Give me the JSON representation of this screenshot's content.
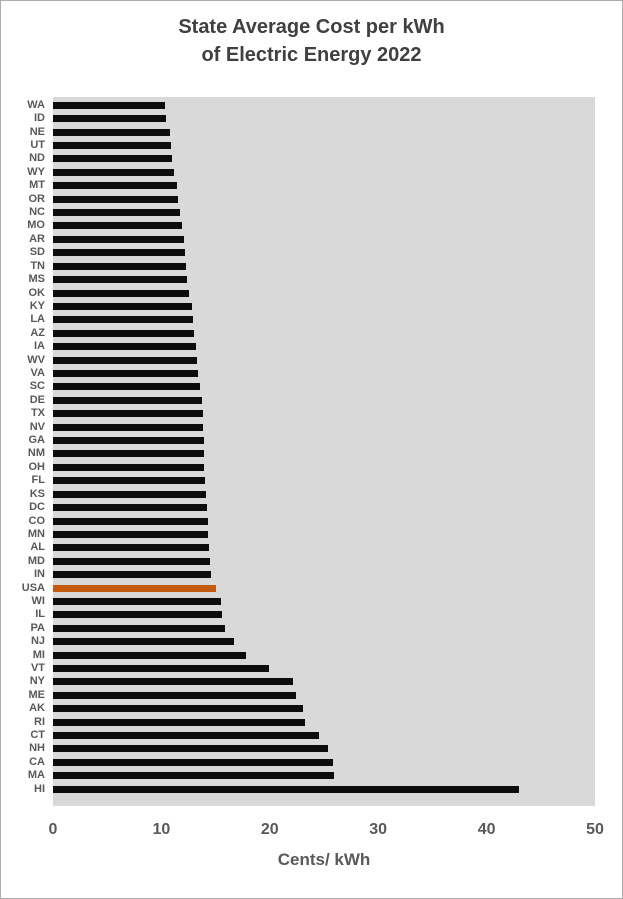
{
  "title": {
    "line1": "State Average Cost per kWh",
    "line2": "of Electric Energy 2022"
  },
  "chart_data": {
    "type": "bar",
    "orientation": "horizontal",
    "title": "State Average Cost per kWh of Electric Energy 2022",
    "xlabel": "Cents/ kWh",
    "ylabel": "",
    "xlim": [
      0,
      50
    ],
    "x_ticks": [
      0,
      10,
      20,
      30,
      40,
      50
    ],
    "grid": false,
    "legend": false,
    "highlight_category": "USA",
    "categories": [
      "WA",
      "ID",
      "NE",
      "UT",
      "ND",
      "WY",
      "MT",
      "OR",
      "NC",
      "MO",
      "AR",
      "SD",
      "TN",
      "MS",
      "OK",
      "KY",
      "LA",
      "AZ",
      "IA",
      "WV",
      "VA",
      "SC",
      "DE",
      "TX",
      "NV",
      "GA",
      "NM",
      "OH",
      "FL",
      "KS",
      "DC",
      "CO",
      "MN",
      "AL",
      "MD",
      "IN",
      "USA",
      "WI",
      "IL",
      "PA",
      "NJ",
      "MI",
      "VT",
      "NY",
      "ME",
      "AK",
      "RI",
      "CT",
      "NH",
      "CA",
      "MA",
      "HI"
    ],
    "values": [
      10.3,
      10.4,
      10.8,
      10.9,
      11.0,
      11.2,
      11.4,
      11.5,
      11.7,
      11.9,
      12.1,
      12.2,
      12.3,
      12.4,
      12.5,
      12.8,
      12.9,
      13.0,
      13.2,
      13.3,
      13.4,
      13.6,
      13.7,
      13.8,
      13.8,
      13.9,
      13.9,
      13.9,
      14.0,
      14.1,
      14.2,
      14.3,
      14.3,
      14.4,
      14.5,
      14.6,
      15.0,
      15.5,
      15.6,
      15.9,
      16.7,
      17.8,
      19.9,
      22.1,
      22.4,
      23.1,
      23.2,
      24.5,
      25.4,
      25.8,
      25.9,
      43.0
    ],
    "colors": {
      "bar": "#0d0d0d",
      "highlight": "#c55a11",
      "plot_background": "#d9d9d9",
      "axis_text": "#595959",
      "title_text": "#404040",
      "page_background": "#ffffff",
      "page_border": "#acacac"
    }
  }
}
